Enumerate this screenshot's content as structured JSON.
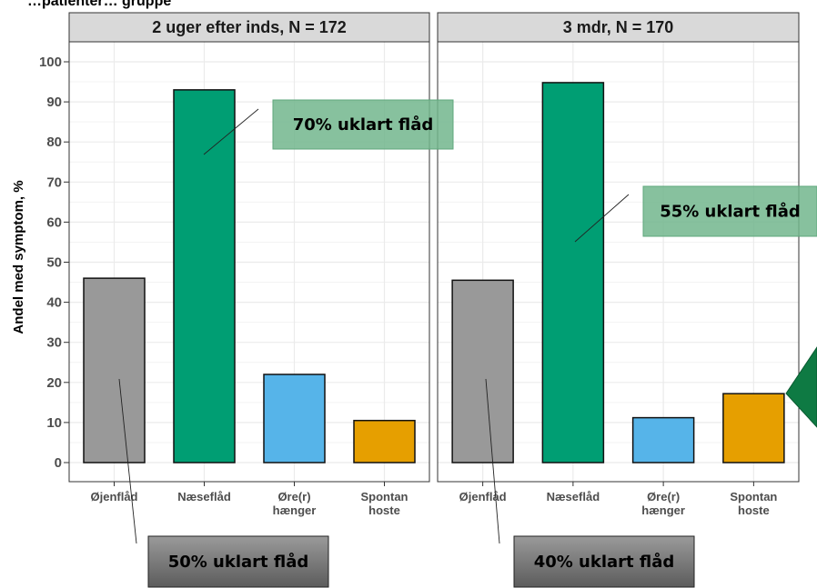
{
  "chart_data": {
    "type": "bar",
    "title": "…patienter… gruppe",
    "ylabel": "Andel med symptom, %",
    "ylim": [
      0,
      100
    ],
    "yticks": [
      0,
      10,
      20,
      30,
      40,
      50,
      60,
      70,
      80,
      90,
      100
    ],
    "grid": true,
    "categories": [
      "Øjenflåd",
      "Næseflåd",
      "Øre(r) hænger",
      "Spontan hoste"
    ],
    "category_colors": [
      "#999999",
      "#009e73",
      "#56b4e9",
      "#e69f00"
    ],
    "panels": [
      {
        "strip": "2 uger efter inds, N = 172",
        "values": [
          46,
          93,
          22,
          10.5
        ],
        "annotations": [
          {
            "text": "70% uklart flåd",
            "target_category": "Næseflåd",
            "style": "green"
          },
          {
            "text": "50% uklart flåd",
            "target_category": "Øjenflåd",
            "style": "gray"
          }
        ]
      },
      {
        "strip": "3 mdr, N = 170",
        "values": [
          45.5,
          94.8,
          11.2,
          17.2
        ],
        "annotations": [
          {
            "text": "55% uklart flåd",
            "target_category": "Næseflåd",
            "style": "green"
          },
          {
            "text": "40% uklart flåd",
            "target_category": "Øjenflåd",
            "style": "gray"
          }
        ]
      }
    ]
  },
  "colors": {
    "annotation_green": "#72b68d",
    "annotation_gray": "#7a7a7a",
    "arrow_green": "#0e7a43",
    "strip_bg": "#d9d9d9",
    "grid": "#ebebeb"
  }
}
